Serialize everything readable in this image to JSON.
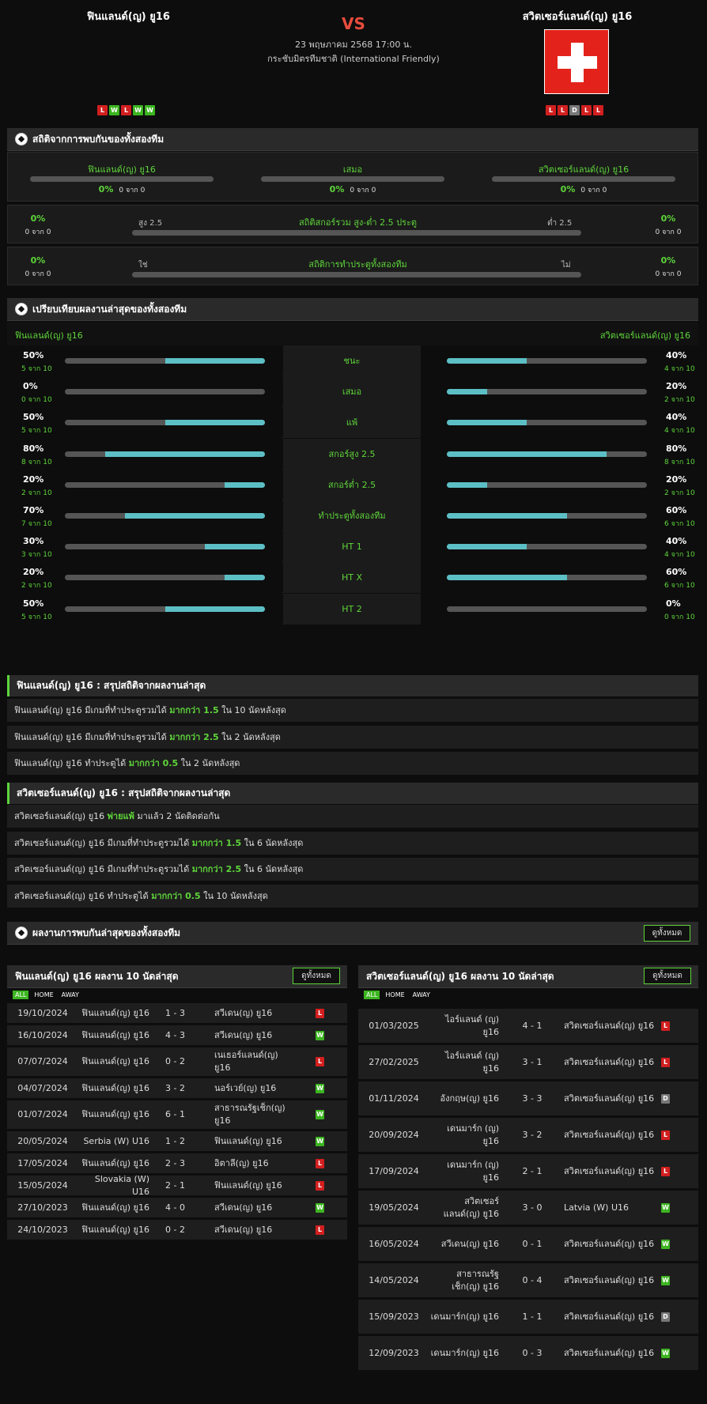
{
  "match": {
    "home": "ฟินแลนด์(ญ) ยู16",
    "away": "สวิตเซอร์แลนด์(ญ) ยู16",
    "vs": "VS",
    "date": "23 พฤษภาคม 2568 17:00 น.",
    "competition": "กระชับมิตรทีมชาติ (International Friendly)",
    "home_form": [
      "L",
      "W",
      "L",
      "W",
      "W"
    ],
    "away_form": [
      "L",
      "L",
      "D",
      "L",
      "L"
    ]
  },
  "h2h": {
    "title": "สถิติจากการพบกันของทั้งสองทีม",
    "home": "ฟินแลนด์(ญ) ยู16",
    "draw": "เสมอ",
    "away": "สวิตเซอร์แลนด์(ญ) ยู16",
    "home_pct": "0%",
    "home_of": "0 จาก 0",
    "draw_pct": "0%",
    "draw_of": "0 จาก 0",
    "away_pct": "0%",
    "away_of": "0 จาก 0",
    "ou": {
      "label": "สถิติสกอร์รวม สูง-ต่ำ 2.5 ประตู",
      "left_tag": "สูง 2.5",
      "right_tag": "ต่ำ 2.5",
      "lpct": "0%",
      "lof": "0 จาก 0",
      "rpct": "0%",
      "rof": "0 จาก 0"
    },
    "btts": {
      "label": "สถิติการทำประตูทั้งสองทีม",
      "left_tag": "ใช่",
      "right_tag": "ไม่",
      "lpct": "0%",
      "lof": "0 จาก 0",
      "rpct": "0%",
      "rof": "0 จาก 0"
    }
  },
  "compare": {
    "title": "เปรียบเทียบผลงานล่าสุดของทั้งสองทีม",
    "home": "ฟินแลนด์(ญ) ยู16",
    "away": "สวิตเซอร์แลนด์(ญ) ยู16",
    "rows": [
      {
        "label": "ชนะ",
        "lpct": "50%",
        "lof": "5 จาก 10",
        "lval": 0.5,
        "rpct": "40%",
        "rof": "4 จาก 10",
        "rval": 0.4
      },
      {
        "label": "เสมอ",
        "lpct": "0%",
        "lof": "0 จาก 10",
        "lval": 0,
        "rpct": "20%",
        "rof": "2 จาก 10",
        "rval": 0.2
      },
      {
        "label": "แพ้",
        "lpct": "50%",
        "lof": "5 จาก 10",
        "lval": 0.5,
        "rpct": "40%",
        "rof": "4 จาก 10",
        "rval": 0.4
      },
      {
        "label": "สกอร์สูง 2.5",
        "lpct": "80%",
        "lof": "8 จาก 10",
        "lval": 0.8,
        "rpct": "80%",
        "rof": "8 จาก 10",
        "rval": 0.8
      },
      {
        "label": "สกอร์ต่ำ 2.5",
        "lpct": "20%",
        "lof": "2 จาก 10",
        "lval": 0.2,
        "rpct": "20%",
        "rof": "2 จาก 10",
        "rval": 0.2
      },
      {
        "label": "ทำประตูทั้งสองทีม",
        "lpct": "70%",
        "lof": "7 จาก 10",
        "lval": 0.7,
        "rpct": "60%",
        "rof": "6 จาก 10",
        "rval": 0.6
      },
      {
        "label": "HT 1",
        "lpct": "30%",
        "lof": "3 จาก 10",
        "lval": 0.3,
        "rpct": "40%",
        "rof": "4 จาก 10",
        "rval": 0.4
      },
      {
        "label": "HT X",
        "lpct": "20%",
        "lof": "2 จาก 10",
        "lval": 0.2,
        "rpct": "60%",
        "rof": "6 จาก 10",
        "rval": 0.6
      },
      {
        "label": "HT 2",
        "lpct": "50%",
        "lof": "5 จาก 10",
        "lval": 0.5,
        "rpct": "0%",
        "rof": "0 จาก 10",
        "rval": 0
      }
    ]
  },
  "summary_home": {
    "title": "ฟินแลนด์(ญ) ยู16 : สรุปสถิติจากผลงานล่าสุด",
    "rows": [
      {
        "pre": "ฟินแลนด์(ญ) ยู16  มีเกมที่ทำประตูรวมได้ ",
        "hl": "มากกว่า  1.5",
        "post": "  ใน 10 นัดหลังสุด"
      },
      {
        "pre": "ฟินแลนด์(ญ) ยู16  มีเกมที่ทำประตูรวมได้ ",
        "hl": "มากกว่า  2.5",
        "post": "  ใน 2 นัดหลังสุด"
      },
      {
        "pre": "ฟินแลนด์(ญ) ยู16  ทำประตูได้ ",
        "hl": "มากกว่า  0.5",
        "post": "  ใน 2 นัดหลังสุด"
      }
    ]
  },
  "summary_away": {
    "title": "สวิตเซอร์แลนด์(ญ) ยู16 : สรุปสถิติจากผลงานล่าสุด",
    "rows": [
      {
        "pre": "สวิตเซอร์แลนด์(ญ) ยู16  ",
        "hl": "พ่ายแพ้",
        "post": "  มาแล้ว 2 นัดติดต่อกัน"
      },
      {
        "pre": "สวิตเซอร์แลนด์(ญ) ยู16  มีเกมที่ทำประตูรวมได้ ",
        "hl": "มากกว่า  1.5",
        "post": "  ใน 6 นัดหลังสุด"
      },
      {
        "pre": "สวิตเซอร์แลนด์(ญ) ยู16  มีเกมที่ทำประตูรวมได้ ",
        "hl": "มากกว่า  2.5",
        "post": "  ใน 6 นัดหลังสุด"
      },
      {
        "pre": "สวิตเซอร์แลนด์(ญ) ยู16  ทำประตูได้ ",
        "hl": "มากกว่า  0.5",
        "post": "  ใน 10 นัดหลังสุด"
      }
    ]
  },
  "h2h_results": {
    "title": "ผลงานการพบกันล่าสุดของทั้งสองทีม",
    "view_all": "ดูทั้งหมด"
  },
  "last10_home": {
    "title": "ฟินแลนด์(ญ) ยู16 ผลงาน 10 นัดล่าสุด",
    "view_all": "ดูทั้งหมด",
    "tabs": [
      "ALL",
      "HOME",
      "AWAY"
    ],
    "rows": [
      {
        "date": "19/10/2024",
        "home": "ฟินแลนด์(ญ) ยู16",
        "score": "1 - 3",
        "away": "สวีเดน(ญ) ยู16",
        "res": "L"
      },
      {
        "date": "16/10/2024",
        "home": "ฟินแลนด์(ญ) ยู16",
        "score": "4 - 3",
        "away": "สวีเดน(ญ) ยู16",
        "res": "W"
      },
      {
        "date": "07/07/2024",
        "home": "ฟินแลนด์(ญ) ยู16",
        "score": "0 - 2",
        "away": "เนเธอร์แลนด์(ญ) ยู16",
        "res": "L"
      },
      {
        "date": "04/07/2024",
        "home": "ฟินแลนด์(ญ) ยู16",
        "score": "3 - 2",
        "away": "นอร์เวย์(ญ) ยู16",
        "res": "W"
      },
      {
        "date": "01/07/2024",
        "home": "ฟินแลนด์(ญ) ยู16",
        "score": "6 - 1",
        "away": "สาธารณรัฐเช็ก(ญ) ยู16",
        "res": "W"
      },
      {
        "date": "20/05/2024",
        "home": "Serbia (W) U16",
        "score": "1 - 2",
        "away": "ฟินแลนด์(ญ) ยู16",
        "res": "W"
      },
      {
        "date": "17/05/2024",
        "home": "ฟินแลนด์(ญ) ยู16",
        "score": "2 - 3",
        "away": "อิตาลี(ญ) ยู16",
        "res": "L"
      },
      {
        "date": "15/05/2024",
        "home": "Slovakia (W) U16",
        "score": "2 - 1",
        "away": "ฟินแลนด์(ญ) ยู16",
        "res": "L"
      },
      {
        "date": "27/10/2023",
        "home": "ฟินแลนด์(ญ) ยู16",
        "score": "4 - 0",
        "away": "สวีเดน(ญ) ยู16",
        "res": "W"
      },
      {
        "date": "24/10/2023",
        "home": "ฟินแลนด์(ญ) ยู16",
        "score": "0 - 2",
        "away": "สวีเดน(ญ) ยู16",
        "res": "L"
      }
    ]
  },
  "last10_away": {
    "title": "สวิตเซอร์แลนด์(ญ) ยู16 ผลงาน 10 นัดล่าสุด",
    "view_all": "ดูทั้งหมด",
    "tabs": [
      "ALL",
      "HOME",
      "AWAY"
    ],
    "rows": [
      {
        "date": "01/03/2025",
        "home": "ไอร์แลนด์ (ญ) ยู16",
        "score": "4 - 1",
        "away": "สวิตเซอร์แลนด์(ญ) ยู16",
        "res": "L"
      },
      {
        "date": "27/02/2025",
        "home": "ไอร์แลนด์ (ญ) ยู16",
        "score": "3 - 1",
        "away": "สวิตเซอร์แลนด์(ญ) ยู16",
        "res": "L"
      },
      {
        "date": "01/11/2024",
        "home": "อังกฤษ(ญ) ยู16",
        "score": "3 - 3",
        "away": "สวิตเซอร์แลนด์(ญ) ยู16",
        "res": "D"
      },
      {
        "date": "20/09/2024",
        "home": "เดนมาร์ก (ญ) ยู16",
        "score": "3 - 2",
        "away": "สวิตเซอร์แลนด์(ญ) ยู16",
        "res": "L"
      },
      {
        "date": "17/09/2024",
        "home": "เดนมาร์ก (ญ) ยู16",
        "score": "2 - 1",
        "away": "สวิตเซอร์แลนด์(ญ) ยู16",
        "res": "L"
      },
      {
        "date": "19/05/2024",
        "home": "สวิตเซอร์แลนด์(ญ) ยู16",
        "score": "3 - 0",
        "away": "Latvia (W) U16",
        "res": "W"
      },
      {
        "date": "16/05/2024",
        "home": "สวีเดน(ญ) ยู16",
        "score": "0 - 1",
        "away": "สวิตเซอร์แลนด์(ญ) ยู16",
        "res": "W"
      },
      {
        "date": "14/05/2024",
        "home": "สาธารณรัฐเช็ก(ญ) ยู16",
        "score": "0 - 4",
        "away": "สวิตเซอร์แลนด์(ญ) ยู16",
        "res": "W"
      },
      {
        "date": "15/09/2023",
        "home": "เดนมาร์ก(ญ) ยู16",
        "score": "1 - 1",
        "away": "สวิตเซอร์แลนด์(ญ) ยู16",
        "res": "D"
      },
      {
        "date": "12/09/2023",
        "home": "เดนมาร์ก(ญ) ยู16",
        "score": "0 - 3",
        "away": "สวิตเซอร์แลนด์(ญ) ยู16",
        "res": "W"
      }
    ]
  },
  "colors": {
    "accent": "#5ed53a",
    "bar_fill": "#5cbfc5",
    "loss": "#d21f1f",
    "win": "#3cb520",
    "draw": "#777777"
  }
}
